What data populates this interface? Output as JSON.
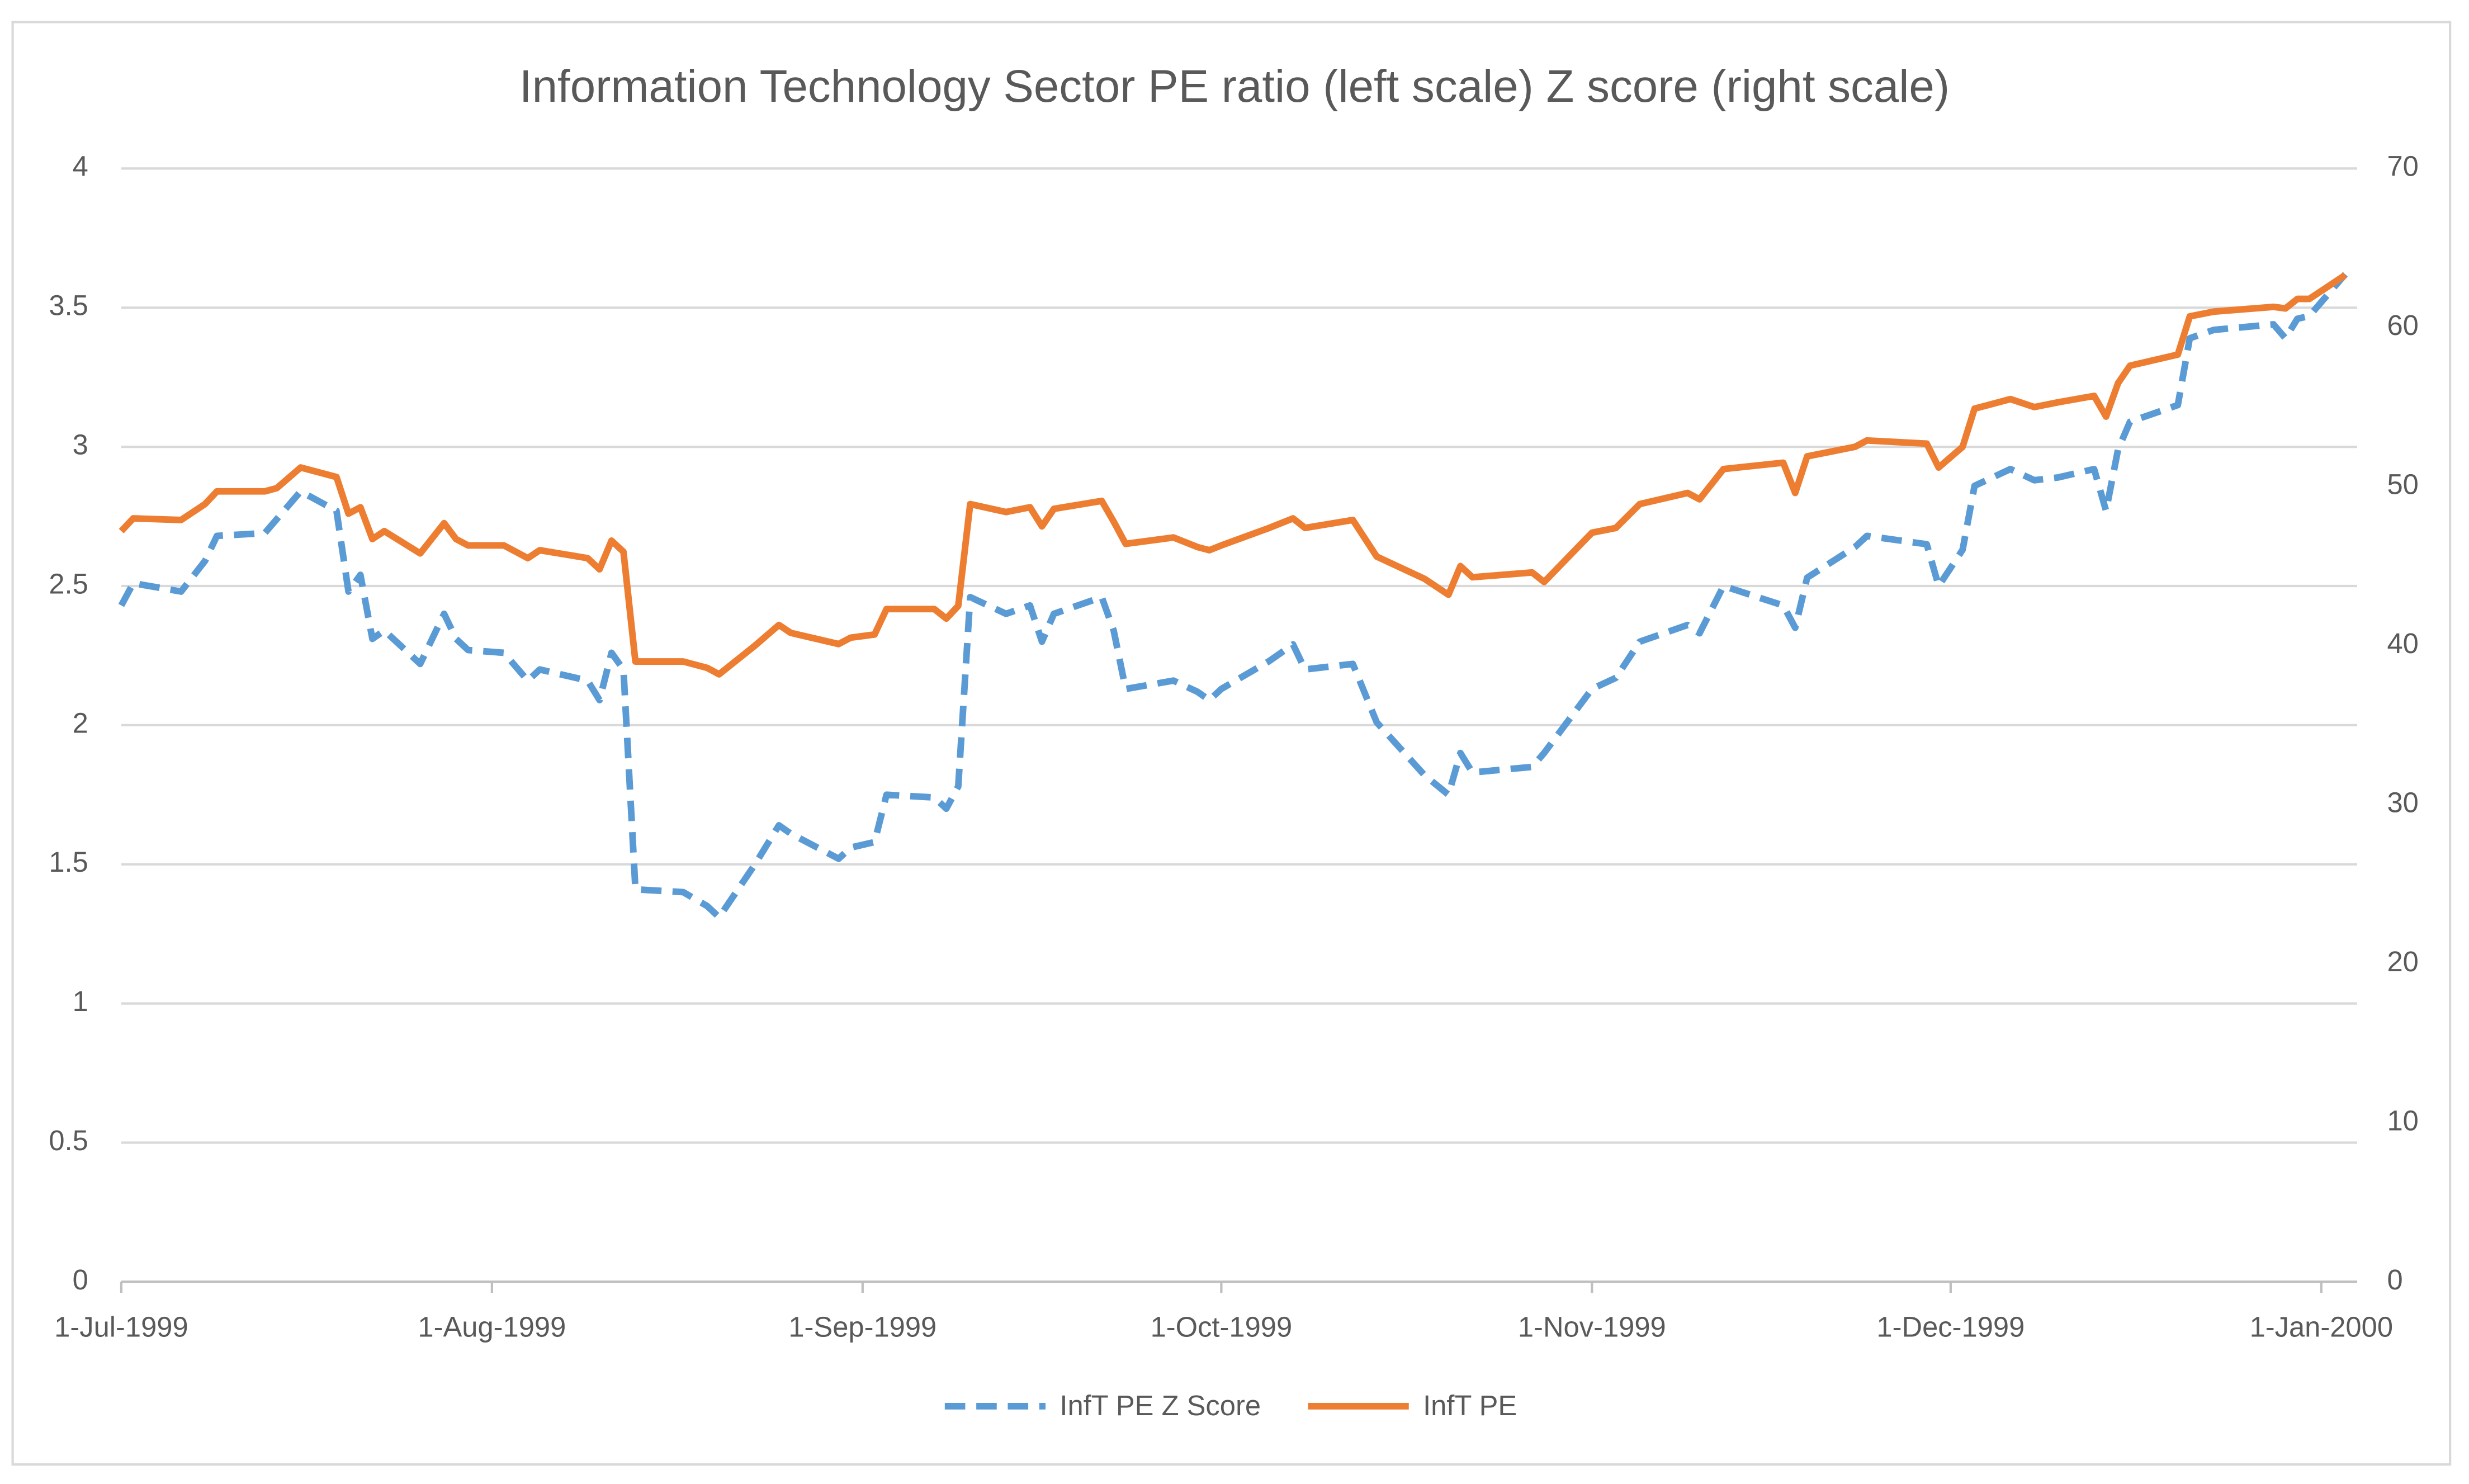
{
  "chart_data": {
    "type": "line",
    "title": "Information Technology Sector PE ratio (left scale) Z score (right scale)",
    "x": [
      "1999-07-01",
      "1999-07-02",
      "1999-07-06",
      "1999-07-08",
      "1999-07-09",
      "1999-07-13",
      "1999-07-14",
      "1999-07-16",
      "1999-07-19",
      "1999-07-20",
      "1999-07-21",
      "1999-07-22",
      "1999-07-23",
      "1999-07-26",
      "1999-07-28",
      "1999-07-29",
      "1999-07-30",
      "1999-08-02",
      "1999-08-04",
      "1999-08-05",
      "1999-08-09",
      "1999-08-10",
      "1999-08-11",
      "1999-08-12",
      "1999-08-13",
      "1999-08-17",
      "1999-08-19",
      "1999-08-20",
      "1999-08-23",
      "1999-08-25",
      "1999-08-26",
      "1999-08-30",
      "1999-08-31",
      "1999-09-02",
      "1999-09-03",
      "1999-09-07",
      "1999-09-08",
      "1999-09-09",
      "1999-09-10",
      "1999-09-13",
      "1999-09-15",
      "1999-09-16",
      "1999-09-17",
      "1999-09-21",
      "1999-09-22",
      "1999-09-23",
      "1999-09-27",
      "1999-09-29",
      "1999-09-30",
      "1999-10-01",
      "1999-10-05",
      "1999-10-07",
      "1999-10-08",
      "1999-10-12",
      "1999-10-14",
      "1999-10-18",
      "1999-10-20",
      "1999-10-21",
      "1999-10-22",
      "1999-10-27",
      "1999-10-28",
      "1999-11-01",
      "1999-11-03",
      "1999-11-05",
      "1999-11-09",
      "1999-11-10",
      "1999-11-12",
      "1999-11-17",
      "1999-11-18",
      "1999-11-19",
      "1999-11-23",
      "1999-11-24",
      "1999-11-29",
      "1999-11-30",
      "1999-12-02",
      "1999-12-03",
      "1999-12-06",
      "1999-12-08",
      "1999-12-10",
      "1999-12-13",
      "1999-12-14",
      "1999-12-15",
      "1999-12-16",
      "1999-12-20",
      "1999-12-21",
      "1999-12-23",
      "1999-12-28",
      "1999-12-29",
      "1999-12-30",
      "1999-12-31",
      "2000-01-03"
    ],
    "series": [
      {
        "name": "InfT PE Z Score",
        "color": "#5b9bd5",
        "line_style": "dashed",
        "values": [
          2.43,
          2.51,
          2.48,
          2.59,
          2.68,
          2.69,
          2.74,
          2.84,
          2.77,
          2.48,
          2.54,
          2.31,
          2.34,
          2.22,
          2.4,
          2.31,
          2.27,
          2.26,
          2.16,
          2.2,
          2.16,
          2.09,
          2.26,
          2.2,
          1.41,
          1.4,
          1.35,
          1.31,
          1.5,
          1.64,
          1.61,
          1.52,
          1.56,
          1.58,
          1.75,
          1.74,
          1.7,
          1.78,
          2.46,
          2.4,
          2.43,
          2.3,
          2.4,
          2.46,
          2.34,
          2.13,
          2.16,
          2.12,
          2.09,
          2.13,
          2.23,
          2.29,
          2.2,
          2.22,
          2.01,
          1.82,
          1.75,
          1.9,
          1.83,
          1.85,
          1.9,
          2.13,
          2.17,
          2.3,
          2.36,
          2.33,
          2.5,
          2.43,
          2.35,
          2.53,
          2.64,
          2.68,
          2.65,
          2.5,
          2.63,
          2.86,
          2.92,
          2.88,
          2.89,
          2.92,
          2.77,
          2.99,
          3.09,
          3.15,
          3.39,
          3.42,
          3.44,
          3.39,
          3.46,
          3.47,
          3.62
        ]
      },
      {
        "name": "InfT PE",
        "color": "#ed7d31",
        "line_style": "solid",
        "axis": "y2",
        "values": [
          47.2,
          48.0,
          47.9,
          48.9,
          49.7,
          49.7,
          49.9,
          51.2,
          50.6,
          48.3,
          48.7,
          46.7,
          47.2,
          45.8,
          47.7,
          46.7,
          46.3,
          46.3,
          45.5,
          46.0,
          45.5,
          44.8,
          46.6,
          45.9,
          39.0,
          39.0,
          38.6,
          38.2,
          40.0,
          41.3,
          40.8,
          40.1,
          40.5,
          40.7,
          42.3,
          42.3,
          41.7,
          42.5,
          48.9,
          48.4,
          48.7,
          47.5,
          48.6,
          49.1,
          47.8,
          46.4,
          46.8,
          46.2,
          46.0,
          46.3,
          47.4,
          48.0,
          47.4,
          47.9,
          45.6,
          44.2,
          43.2,
          45.0,
          44.3,
          44.6,
          44.0,
          47.1,
          47.4,
          48.9,
          49.6,
          49.2,
          51.1,
          51.5,
          49.6,
          51.9,
          52.5,
          52.9,
          52.7,
          51.2,
          52.5,
          54.9,
          55.5,
          55.0,
          55.3,
          55.7,
          54.4,
          56.5,
          57.6,
          58.3,
          60.7,
          61.0,
          61.3,
          61.2,
          61.8,
          61.8,
          63.3
        ]
      }
    ],
    "xlim": [
      "1999-07-01",
      "2000-01-04"
    ],
    "xticks": [
      {
        "value": "1999-07-01",
        "label": "1-Jul-1999"
      },
      {
        "value": "1999-08-01",
        "label": "1-Aug-1999"
      },
      {
        "value": "1999-09-01",
        "label": "1-Sep-1999"
      },
      {
        "value": "1999-10-01",
        "label": "1-Oct-1999"
      },
      {
        "value": "1999-11-01",
        "label": "1-Nov-1999"
      },
      {
        "value": "1999-12-01",
        "label": "1-Dec-1999"
      },
      {
        "value": "2000-01-01",
        "label": "1-Jan-2000"
      }
    ],
    "ylim": [
      0,
      4
    ],
    "yticks": [
      0,
      0.5,
      1,
      1.5,
      2,
      2.5,
      3,
      3.5,
      4
    ],
    "y2lim": [
      0,
      70
    ],
    "y2ticks": [
      0,
      10,
      20,
      30,
      40,
      50,
      60,
      70
    ],
    "grid": true,
    "legend": "bottom"
  }
}
